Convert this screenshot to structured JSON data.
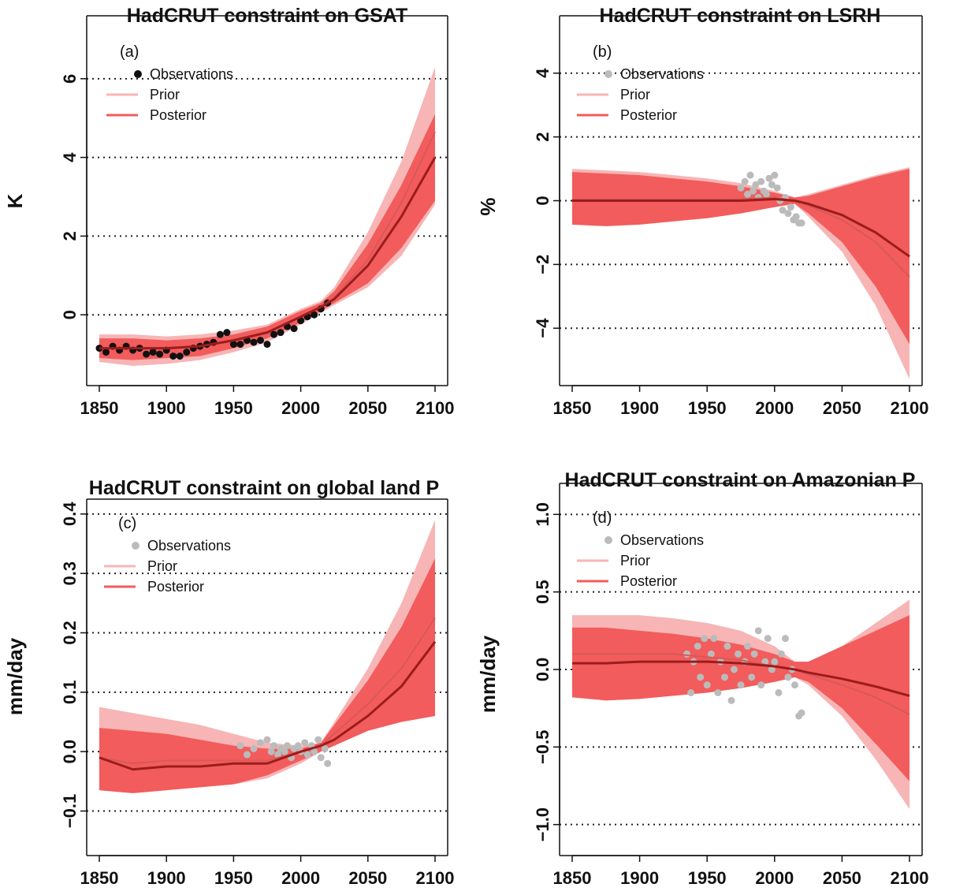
{
  "chart_data": [
    {
      "type": "line",
      "title": "HadCRUT constraint on GSAT",
      "panel_label": "(a)",
      "ylabel": "K",
      "xlabel": "",
      "xlim": [
        1850,
        2100
      ],
      "ylim": [
        -1.8,
        7.6
      ],
      "xticks": [
        1850,
        1900,
        1950,
        2000,
        2050,
        2100
      ],
      "xtick_labels": [
        "1850",
        "1900",
        "1950",
        "2000",
        "2050",
        "2100"
      ],
      "yticks": [
        0,
        2,
        4,
        6
      ],
      "ytick_labels": [
        "0",
        "2",
        "4",
        "6"
      ],
      "hlines": [
        0,
        2,
        4,
        6
      ],
      "legend": [
        "Observations",
        "Prior",
        "Posterior"
      ],
      "legend_position": "top-left",
      "colors": {
        "observations": "#111111",
        "prior_band": "#f7b5b5",
        "posterior_band": "#f25c5c",
        "prior_line": "#d65858",
        "posterior_line": "#9c1c1c"
      },
      "x": [
        1850,
        1875,
        1900,
        1925,
        1950,
        1975,
        2000,
        2015,
        2025,
        2050,
        2075,
        2100
      ],
      "series": [
        {
          "name": "Prior",
          "values": [
            -0.85,
            -0.85,
            -0.85,
            -0.8,
            -0.65,
            -0.45,
            -0.05,
            0.2,
            0.45,
            1.4,
            2.85,
            4.65
          ]
        },
        {
          "name": "Posterior",
          "values": [
            -0.85,
            -0.85,
            -0.85,
            -0.8,
            -0.65,
            -0.45,
            -0.05,
            0.2,
            0.4,
            1.25,
            2.5,
            4.0
          ]
        }
      ],
      "prior_band": {
        "upper": [
          -0.5,
          -0.5,
          -0.55,
          -0.5,
          -0.4,
          -0.25,
          0.15,
          0.35,
          0.7,
          2.1,
          3.9,
          6.3
        ],
        "lower": [
          -1.2,
          -1.3,
          -1.25,
          -1.15,
          -0.95,
          -0.7,
          -0.25,
          0.05,
          0.25,
          0.7,
          1.5,
          2.8
        ]
      },
      "posterior_band": {
        "upper": [
          -0.6,
          -0.6,
          -0.65,
          -0.6,
          -0.5,
          -0.3,
          0.1,
          0.3,
          0.6,
          1.8,
          3.3,
          5.1
        ],
        "lower": [
          -1.1,
          -1.15,
          -1.1,
          -1.05,
          -0.85,
          -0.6,
          -0.2,
          0.1,
          0.3,
          0.8,
          1.7,
          2.9
        ]
      },
      "observations": {
        "x": [
          1850,
          1855,
          1860,
          1865,
          1870,
          1875,
          1880,
          1885,
          1890,
          1895,
          1900,
          1905,
          1910,
          1915,
          1920,
          1925,
          1930,
          1935,
          1940,
          1945,
          1950,
          1955,
          1960,
          1965,
          1970,
          1975,
          1980,
          1985,
          1990,
          1995,
          2000,
          2005,
          2010,
          2015,
          2020
        ],
        "y": [
          -0.85,
          -0.95,
          -0.8,
          -0.9,
          -0.8,
          -0.9,
          -0.85,
          -1.0,
          -0.95,
          -1.0,
          -0.9,
          -1.05,
          -1.05,
          -0.95,
          -0.85,
          -0.8,
          -0.75,
          -0.7,
          -0.5,
          -0.45,
          -0.75,
          -0.75,
          -0.65,
          -0.7,
          -0.65,
          -0.75,
          -0.5,
          -0.45,
          -0.3,
          -0.35,
          -0.15,
          -0.05,
          0.0,
          0.15,
          0.3
        ]
      }
    },
    {
      "type": "line",
      "title": "HadCRUT constraint on LSRH",
      "panel_label": "(b)",
      "ylabel": "%",
      "xlabel": "",
      "xlim": [
        1850,
        2100
      ],
      "ylim": [
        -5.8,
        5.8
      ],
      "xticks": [
        1850,
        1900,
        1950,
        2000,
        2050,
        2100
      ],
      "xtick_labels": [
        "1850",
        "1900",
        "1950",
        "2000",
        "2050",
        "2100"
      ],
      "yticks": [
        -4,
        -2,
        0,
        2,
        4
      ],
      "ytick_labels": [
        "−4",
        "−2",
        "0",
        "2",
        "4"
      ],
      "hlines": [
        -4,
        -2,
        0,
        2,
        4
      ],
      "legend": [
        "Observations",
        "Prior",
        "Posterior"
      ],
      "legend_position": "top-left",
      "colors": {
        "observations": "#bbbbbb",
        "prior_band": "#f7b5b5",
        "posterior_band": "#f25c5c",
        "prior_line": "#d65858",
        "posterior_line": "#9c1c1c"
      },
      "x": [
        1850,
        1875,
        1900,
        1925,
        1950,
        1975,
        2000,
        2015,
        2025,
        2050,
        2075,
        2100
      ],
      "series": [
        {
          "name": "Prior",
          "values": [
            0.05,
            0.05,
            0.05,
            0.05,
            0.05,
            0.05,
            0.1,
            0.0,
            -0.15,
            -0.6,
            -1.3,
            -2.4
          ]
        },
        {
          "name": "Posterior",
          "values": [
            0.0,
            0.0,
            0.0,
            0.0,
            0.0,
            0.0,
            0.05,
            0.0,
            -0.1,
            -0.45,
            -1.0,
            -1.75
          ]
        }
      ],
      "prior_band": {
        "upper": [
          1.0,
          0.95,
          0.9,
          0.8,
          0.7,
          0.55,
          0.3,
          0.1,
          0.2,
          0.5,
          0.8,
          1.05
        ],
        "lower": [
          -0.75,
          -0.75,
          -0.7,
          -0.6,
          -0.5,
          -0.4,
          -0.2,
          -0.1,
          -0.5,
          -1.6,
          -3.3,
          -5.6
        ]
      },
      "posterior_band": {
        "upper": [
          0.9,
          0.85,
          0.8,
          0.7,
          0.6,
          0.45,
          0.25,
          0.1,
          0.15,
          0.45,
          0.75,
          1.0
        ],
        "lower": [
          -0.75,
          -0.8,
          -0.75,
          -0.65,
          -0.55,
          -0.4,
          -0.2,
          -0.1,
          -0.4,
          -1.3,
          -2.7,
          -4.5
        ]
      },
      "observations": {
        "x": [
          1975,
          1978,
          1980,
          1982,
          1984,
          1986,
          1988,
          1990,
          1992,
          1994,
          1996,
          1998,
          2000,
          2002,
          2004,
          2006,
          2008,
          2010,
          2012,
          2014,
          2016,
          2018,
          2020
        ],
        "y": [
          0.4,
          0.6,
          0.2,
          0.8,
          0.3,
          0.5,
          0.1,
          0.6,
          0.3,
          0.2,
          0.7,
          0.5,
          0.8,
          0.4,
          0.0,
          -0.3,
          0.1,
          -0.4,
          -0.2,
          -0.6,
          -0.5,
          -0.7,
          -0.7
        ]
      }
    },
    {
      "type": "line",
      "title": "HadCRUT constraint on global land P",
      "panel_label": "(c)",
      "ylabel": "mm/day",
      "xlabel": "",
      "xlim": [
        1850,
        2100
      ],
      "ylim": [
        -0.175,
        0.425
      ],
      "xticks": [
        1850,
        1900,
        1950,
        2000,
        2050,
        2100
      ],
      "xtick_labels": [
        "1850",
        "1900",
        "1950",
        "2000",
        "2050",
        "2100"
      ],
      "yticks": [
        -0.1,
        0.0,
        0.1,
        0.2,
        0.3,
        0.4
      ],
      "ytick_labels": [
        "−0.1",
        "0.0",
        "0.1",
        "0.2",
        "0.3",
        "0.4"
      ],
      "hlines": [
        -0.1,
        0.0,
        0.1,
        0.2,
        0.3,
        0.4
      ],
      "legend": [
        "Observations",
        "Prior",
        "Posterior"
      ],
      "legend_position": "top-left",
      "colors": {
        "observations": "#bbbbbb",
        "prior_band": "#f7b5b5",
        "posterior_band": "#f25c5c",
        "prior_line": "#d65858",
        "posterior_line": "#9c1c1c"
      },
      "x": [
        1850,
        1875,
        1900,
        1925,
        1950,
        1975,
        2000,
        2015,
        2025,
        2050,
        2075,
        2100
      ],
      "series": [
        {
          "name": "Prior",
          "values": [
            -0.01,
            -0.02,
            -0.015,
            -0.015,
            -0.015,
            -0.015,
            0.0,
            0.01,
            0.03,
            0.08,
            0.14,
            0.225
          ]
        },
        {
          "name": "Posterior",
          "values": [
            -0.01,
            -0.03,
            -0.025,
            -0.025,
            -0.02,
            -0.02,
            0.0,
            0.01,
            0.02,
            0.06,
            0.11,
            0.185
          ]
        }
      ],
      "prior_band": {
        "upper": [
          0.075,
          0.065,
          0.055,
          0.045,
          0.03,
          0.015,
          0.01,
          0.015,
          0.05,
          0.14,
          0.25,
          0.39
        ],
        "lower": [
          -0.065,
          -0.07,
          -0.065,
          -0.06,
          -0.055,
          -0.045,
          -0.02,
          0.0,
          0.01,
          0.035,
          0.05,
          0.06
        ]
      },
      "posterior_band": {
        "upper": [
          0.04,
          0.035,
          0.03,
          0.02,
          0.01,
          0.005,
          0.005,
          0.015,
          0.045,
          0.12,
          0.21,
          0.325
        ],
        "lower": [
          -0.065,
          -0.07,
          -0.065,
          -0.06,
          -0.055,
          -0.04,
          -0.015,
          0.0,
          0.01,
          0.035,
          0.05,
          0.06
        ]
      },
      "observations": {
        "x": [
          1955,
          1960,
          1965,
          1970,
          1975,
          1978,
          1980,
          1983,
          1985,
          1988,
          1990,
          1993,
          1995,
          1998,
          2000,
          2003,
          2005,
          2008,
          2010,
          2013,
          2015,
          2018,
          2020
        ],
        "y": [
          0.01,
          -0.005,
          0.005,
          0.015,
          0.02,
          0.0,
          0.01,
          -0.005,
          0.005,
          0.0,
          0.01,
          -0.01,
          0.005,
          0.01,
          0.0,
          0.015,
          -0.005,
          0.01,
          0.0,
          0.02,
          -0.01,
          0.005,
          -0.02
        ]
      }
    },
    {
      "type": "line",
      "title": "HadCRUT constraint on Amazonian P",
      "panel_label": "(d)",
      "ylabel": "mm/day",
      "xlabel": "",
      "xlim": [
        1850,
        2100
      ],
      "ylim": [
        -1.2,
        1.2
      ],
      "xticks": [
        1850,
        1900,
        1950,
        2000,
        2050,
        2100
      ],
      "xtick_labels": [
        "1850",
        "1900",
        "1950",
        "2000",
        "2050",
        "2100"
      ],
      "yticks": [
        -1.0,
        -0.5,
        0.0,
        0.5,
        1.0
      ],
      "ytick_labels": [
        "−1.0",
        "−0.5",
        "0.0",
        "0.5",
        "1.0"
      ],
      "hlines": [
        -1.0,
        -0.5,
        0.0,
        0.5,
        1.0
      ],
      "legend": [
        "Observations",
        "Prior",
        "Posterior"
      ],
      "legend_position": "top-left",
      "colors": {
        "observations": "#bbbbbb",
        "prior_band": "#f7b5b5",
        "posterior_band": "#f25c5c",
        "prior_line": "#d65858",
        "posterior_line": "#9c1c1c"
      },
      "x": [
        1850,
        1875,
        1900,
        1925,
        1950,
        1975,
        2000,
        2015,
        2025,
        2050,
        2075,
        2100
      ],
      "series": [
        {
          "name": "Prior",
          "values": [
            0.1,
            0.1,
            0.1,
            0.1,
            0.08,
            0.06,
            0.02,
            0.0,
            -0.03,
            -0.1,
            -0.18,
            -0.29
          ]
        },
        {
          "name": "Posterior",
          "values": [
            0.04,
            0.04,
            0.05,
            0.05,
            0.05,
            0.04,
            0.02,
            0.0,
            -0.02,
            -0.06,
            -0.11,
            -0.17
          ]
        }
      ],
      "prior_band": {
        "upper": [
          0.35,
          0.35,
          0.35,
          0.33,
          0.3,
          0.25,
          0.15,
          0.05,
          0.05,
          0.15,
          0.3,
          0.45
        ],
        "lower": [
          -0.18,
          -0.18,
          -0.17,
          -0.15,
          -0.13,
          -0.12,
          -0.08,
          -0.05,
          -0.1,
          -0.3,
          -0.58,
          -0.9
        ]
      },
      "posterior_band": {
        "upper": [
          0.27,
          0.27,
          0.25,
          0.23,
          0.2,
          0.16,
          0.1,
          0.05,
          0.05,
          0.15,
          0.25,
          0.35
        ],
        "lower": [
          -0.18,
          -0.2,
          -0.19,
          -0.17,
          -0.15,
          -0.12,
          -0.08,
          -0.05,
          -0.08,
          -0.25,
          -0.48,
          -0.72
        ]
      },
      "observations": {
        "x": [
          1935,
          1938,
          1940,
          1943,
          1945,
          1948,
          1950,
          1953,
          1955,
          1958,
          1960,
          1963,
          1965,
          1968,
          1970,
          1973,
          1975,
          1978,
          1980,
          1983,
          1985,
          1988,
          1990,
          1993,
          1995,
          1998,
          2000,
          2003,
          2005,
          2008,
          2010,
          2013,
          2015,
          2018,
          2020
        ],
        "y": [
          0.1,
          -0.15,
          0.05,
          0.15,
          -0.05,
          0.2,
          -0.1,
          0.1,
          0.2,
          -0.15,
          0.05,
          -0.05,
          0.15,
          -0.2,
          0.0,
          0.1,
          -0.1,
          0.05,
          0.15,
          -0.05,
          0.1,
          0.25,
          -0.1,
          0.05,
          0.2,
          0.0,
          0.05,
          -0.15,
          0.1,
          0.2,
          -0.05,
          0.0,
          -0.1,
          -0.3,
          -0.28
        ]
      }
    }
  ]
}
